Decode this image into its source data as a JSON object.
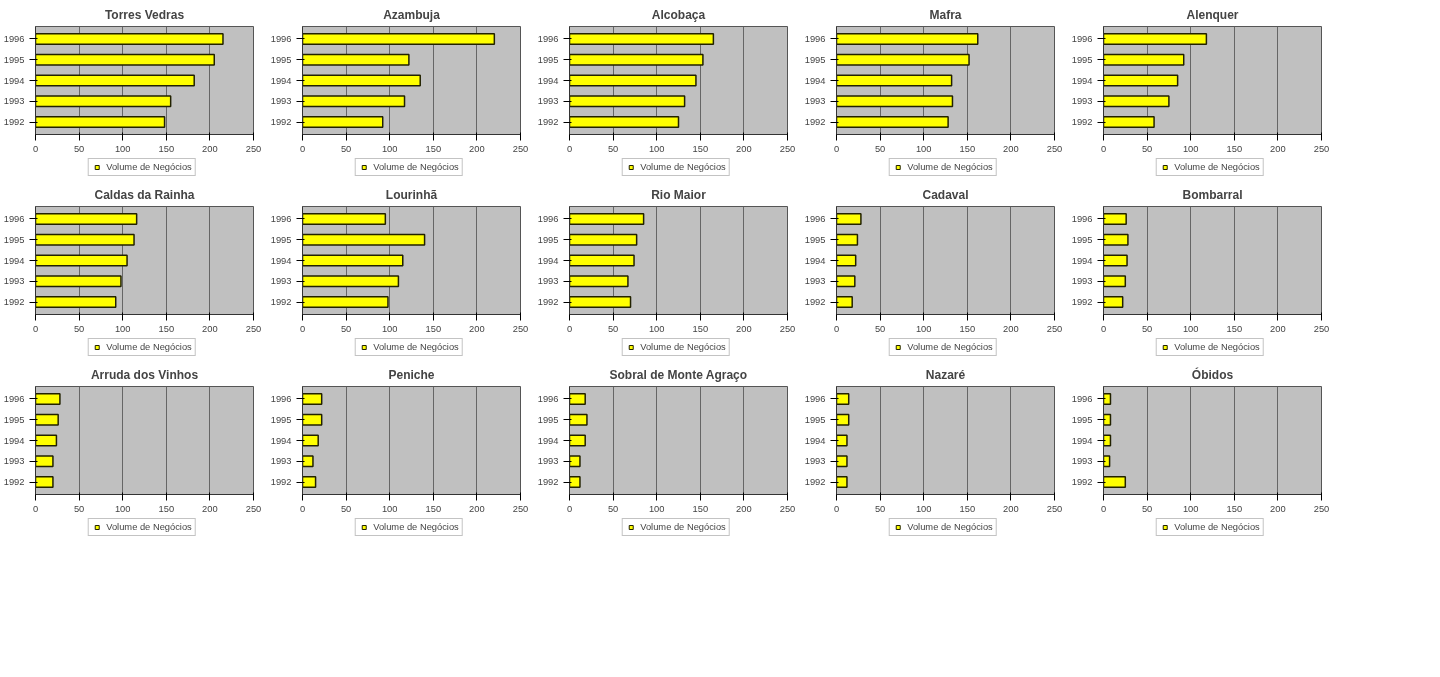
{
  "chart_data": [
    {
      "type": "bar",
      "orientation": "horizontal",
      "title": "Torres Vedras",
      "categories": [
        "1996",
        "1995",
        "1994",
        "1993",
        "1992"
      ],
      "series": [
        {
          "name": "Volume de Negócios",
          "color": "#ffff00",
          "values": [
            215,
            205,
            182,
            155,
            148
          ]
        }
      ],
      "xlim": [
        0,
        250
      ],
      "xticks": [
        0,
        50,
        100,
        150,
        200,
        250
      ],
      "grid": "x",
      "legend": "bottom"
    },
    {
      "type": "bar",
      "orientation": "horizontal",
      "title": "Azambuja",
      "categories": [
        "1996",
        "1995",
        "1994",
        "1993",
        "1992"
      ],
      "series": [
        {
          "name": "Volume de Negócios",
          "color": "#ffff00",
          "values": [
            220,
            122,
            135,
            117,
            92
          ]
        }
      ],
      "xlim": [
        0,
        250
      ],
      "xticks": [
        0,
        50,
        100,
        150,
        200,
        250
      ],
      "grid": "x",
      "legend": "bottom"
    },
    {
      "type": "bar",
      "orientation": "horizontal",
      "title": "Alcobaça",
      "categories": [
        "1996",
        "1995",
        "1994",
        "1993",
        "1992"
      ],
      "series": [
        {
          "name": "Volume de Negócios",
          "color": "#ffff00",
          "values": [
            165,
            153,
            145,
            132,
            125
          ]
        }
      ],
      "xlim": [
        0,
        250
      ],
      "xticks": [
        0,
        50,
        100,
        150,
        200,
        250
      ],
      "grid": "x",
      "legend": "bottom"
    },
    {
      "type": "bar",
      "orientation": "horizontal",
      "title": "Mafra",
      "categories": [
        "1996",
        "1995",
        "1994",
        "1993",
        "1992"
      ],
      "series": [
        {
          "name": "Volume de Negócios",
          "color": "#ffff00",
          "values": [
            162,
            152,
            132,
            133,
            128
          ]
        }
      ],
      "xlim": [
        0,
        250
      ],
      "xticks": [
        0,
        50,
        100,
        150,
        200,
        250
      ],
      "grid": "x",
      "legend": "bottom"
    },
    {
      "type": "bar",
      "orientation": "horizontal",
      "title": "Alenquer",
      "categories": [
        "1996",
        "1995",
        "1994",
        "1993",
        "1992"
      ],
      "series": [
        {
          "name": "Volume de Negócios",
          "color": "#ffff00",
          "values": [
            118,
            92,
            85,
            75,
            58
          ]
        }
      ],
      "xlim": [
        0,
        250
      ],
      "xticks": [
        0,
        50,
        100,
        150,
        200,
        250
      ],
      "grid": "x",
      "legend": "bottom"
    },
    {
      "type": "bar",
      "orientation": "horizontal",
      "title": "Caldas da Rainha",
      "categories": [
        "1996",
        "1995",
        "1994",
        "1993",
        "1992"
      ],
      "series": [
        {
          "name": "Volume de Negócios",
          "color": "#ffff00",
          "values": [
            116,
            113,
            105,
            98,
            92
          ]
        }
      ],
      "xlim": [
        0,
        250
      ],
      "xticks": [
        0,
        50,
        100,
        150,
        200,
        250
      ],
      "grid": "x",
      "legend": "bottom"
    },
    {
      "type": "bar",
      "orientation": "horizontal",
      "title": "Lourinhã",
      "categories": [
        "1996",
        "1995",
        "1994",
        "1993",
        "1992"
      ],
      "series": [
        {
          "name": "Volume de Negócios",
          "color": "#ffff00",
          "values": [
            95,
            140,
            115,
            110,
            98
          ]
        }
      ],
      "xlim": [
        0,
        250
      ],
      "xticks": [
        0,
        50,
        100,
        150,
        200,
        250
      ],
      "grid": "x",
      "legend": "bottom"
    },
    {
      "type": "bar",
      "orientation": "horizontal",
      "title": "Rio Maior",
      "categories": [
        "1996",
        "1995",
        "1994",
        "1993",
        "1992"
      ],
      "series": [
        {
          "name": "Volume de Negócios",
          "color": "#ffff00",
          "values": [
            85,
            77,
            74,
            67,
            70
          ]
        }
      ],
      "xlim": [
        0,
        250
      ],
      "xticks": [
        0,
        50,
        100,
        150,
        200,
        250
      ],
      "grid": "x",
      "legend": "bottom"
    },
    {
      "type": "bar",
      "orientation": "horizontal",
      "title": "Cadaval",
      "categories": [
        "1996",
        "1995",
        "1994",
        "1993",
        "1992"
      ],
      "series": [
        {
          "name": "Volume de Negócios",
          "color": "#ffff00",
          "values": [
            28,
            24,
            22,
            21,
            18
          ]
        }
      ],
      "xlim": [
        0,
        250
      ],
      "xticks": [
        0,
        50,
        100,
        150,
        200,
        250
      ],
      "grid": "x",
      "legend": "bottom"
    },
    {
      "type": "bar",
      "orientation": "horizontal",
      "title": "Bombarral",
      "categories": [
        "1996",
        "1995",
        "1994",
        "1993",
        "1992"
      ],
      "series": [
        {
          "name": "Volume de Negócios",
          "color": "#ffff00",
          "values": [
            26,
            28,
            27,
            25,
            22
          ]
        }
      ],
      "xlim": [
        0,
        250
      ],
      "xticks": [
        0,
        50,
        100,
        150,
        200,
        250
      ],
      "grid": "x",
      "legend": "bottom"
    },
    {
      "type": "bar",
      "orientation": "horizontal",
      "title": "Arruda dos Vinhos",
      "categories": [
        "1996",
        "1995",
        "1994",
        "1993",
        "1992"
      ],
      "series": [
        {
          "name": "Volume de Negócios",
          "color": "#ffff00",
          "values": [
            28,
            26,
            24,
            20,
            20
          ]
        }
      ],
      "xlim": [
        0,
        250
      ],
      "xticks": [
        0,
        50,
        100,
        150,
        200,
        250
      ],
      "grid": "x",
      "legend": "bottom"
    },
    {
      "type": "bar",
      "orientation": "horizontal",
      "title": "Peniche",
      "categories": [
        "1996",
        "1995",
        "1994",
        "1993",
        "1992"
      ],
      "series": [
        {
          "name": "Volume de Negócios",
          "color": "#ffff00",
          "values": [
            22,
            22,
            18,
            12,
            15
          ]
        }
      ],
      "xlim": [
        0,
        250
      ],
      "xticks": [
        0,
        50,
        100,
        150,
        200,
        250
      ],
      "grid": "x",
      "legend": "bottom"
    },
    {
      "type": "bar",
      "orientation": "horizontal",
      "title": "Sobral de Monte Agraço",
      "categories": [
        "1996",
        "1995",
        "1994",
        "1993",
        "1992"
      ],
      "series": [
        {
          "name": "Volume de Negócios",
          "color": "#ffff00",
          "values": [
            18,
            20,
            18,
            12,
            12
          ]
        }
      ],
      "xlim": [
        0,
        250
      ],
      "xticks": [
        0,
        50,
        100,
        150,
        200,
        250
      ],
      "grid": "x",
      "legend": "bottom"
    },
    {
      "type": "bar",
      "orientation": "horizontal",
      "title": "Nazaré",
      "categories": [
        "1996",
        "1995",
        "1994",
        "1993",
        "1992"
      ],
      "series": [
        {
          "name": "Volume de Negócios",
          "color": "#ffff00",
          "values": [
            14,
            14,
            12,
            12,
            12
          ]
        }
      ],
      "xlim": [
        0,
        250
      ],
      "xticks": [
        0,
        50,
        100,
        150,
        200,
        250
      ],
      "grid": "x",
      "legend": "bottom"
    },
    {
      "type": "bar",
      "orientation": "horizontal",
      "title": "Óbidos",
      "categories": [
        "1996",
        "1995",
        "1994",
        "1993",
        "1992"
      ],
      "series": [
        {
          "name": "Volume de Negócios",
          "color": "#ffff00",
          "values": [
            8,
            8,
            8,
            7,
            25
          ]
        }
      ],
      "xlim": [
        0,
        250
      ],
      "xticks": [
        0,
        50,
        100,
        150,
        200,
        250
      ],
      "grid": "x",
      "legend": "bottom"
    }
  ]
}
